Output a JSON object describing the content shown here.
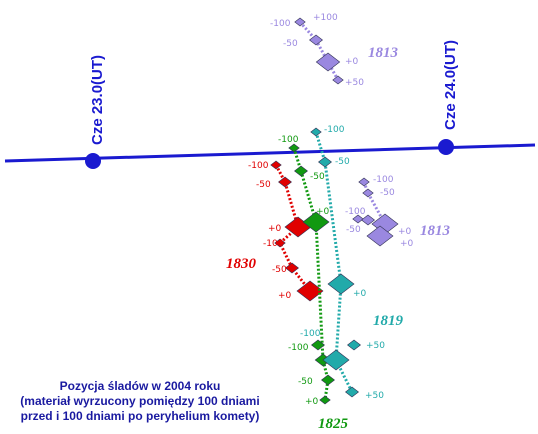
{
  "axis": {
    "labels": [
      "Cze 23.0(UT)",
      "Cze 24.0(UT)"
    ]
  },
  "groups": [
    {
      "name": "1813",
      "labels": [
        "-100",
        "+100",
        "-50",
        "+0",
        "+50"
      ]
    },
    {
      "name": "1830",
      "labels": [
        "-100",
        "-50",
        "+0",
        "-100",
        "-50",
        "+0"
      ]
    },
    {
      "name": "1825",
      "labels": [
        "-100",
        "-50",
        "+0",
        "-100",
        "-50",
        "+0"
      ]
    },
    {
      "name": "1819",
      "labels": [
        "-100",
        "-50",
        "+0",
        "-100",
        "+50",
        "+50"
      ]
    },
    {
      "name": "1813",
      "labels": [
        "-100",
        "-50",
        "-100",
        "-50",
        "+0",
        "+0"
      ]
    }
  ],
  "caption": [
    "Pozycja śladów w 2004 roku",
    "(materiał wyrzucony pomiędzy 100 dniami",
    "przed i 100 dniami po peryhelium komety)"
  ]
}
